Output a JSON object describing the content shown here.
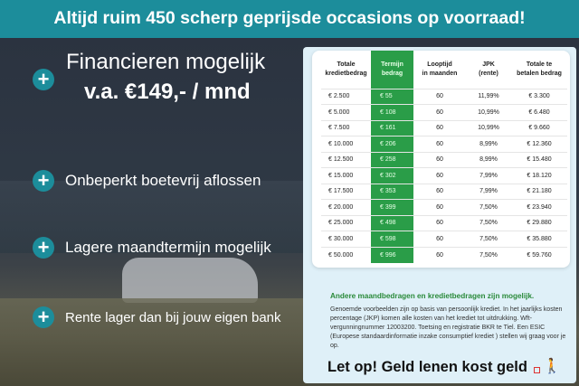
{
  "banner": "Altijd ruim 450 scherp geprijsde occasions op voorraad!",
  "features": {
    "financing_line1": "Financieren mogelijk",
    "financing_line2": "v.a. €149,- / mnd",
    "items": [
      "Onbeperkt boetevrij aflossen",
      "Lagere maandtermijn mogelijk",
      "Rente lager dan bij jouw eigen bank"
    ]
  },
  "table": {
    "headers": [
      [
        "Totale",
        "kredietbedrag"
      ],
      [
        "Termijn",
        "bedrag"
      ],
      [
        "Looptijd",
        "in maanden"
      ],
      [
        "JPK",
        "(rente)"
      ],
      [
        "Totale te",
        "betalen bedrag"
      ]
    ],
    "rows": [
      [
        "€ 2.500",
        "€ 55",
        "60",
        "11,99%",
        "€ 3.300"
      ],
      [
        "€ 5.000",
        "€ 108",
        "60",
        "10,99%",
        "€ 6.480"
      ],
      [
        "€ 7.500",
        "€ 161",
        "60",
        "10,99%",
        "€ 9.660"
      ],
      [
        "€ 10.000",
        "€ 206",
        "60",
        "8,99%",
        "€ 12.360"
      ],
      [
        "€ 12.500",
        "€ 258",
        "60",
        "8,99%",
        "€ 15.480"
      ],
      [
        "€ 15.000",
        "€ 302",
        "60",
        "7,99%",
        "€ 18.120"
      ],
      [
        "€ 17.500",
        "€ 353",
        "60",
        "7,99%",
        "€ 21.180"
      ],
      [
        "€ 20.000",
        "€ 399",
        "60",
        "7,50%",
        "€ 23.940"
      ],
      [
        "€ 25.000",
        "€ 498",
        "60",
        "7,50%",
        "€ 29.880"
      ],
      [
        "€ 30.000",
        "€ 598",
        "60",
        "7,50%",
        "€ 35.880"
      ],
      [
        "€ 50.000",
        "€ 996",
        "60",
        "7,50%",
        "€ 59.760"
      ]
    ]
  },
  "note_heading": "Andere maandbedragen en kredietbedragen zijn mogelijk.",
  "note_text": "Genoemde voorbeelden zijn op basis van persoonlijk krediet. In het jaarlijks kosten percentage (JKP) komen alle kosten van het krediet tot uitdrukking. Wft-vergunningnummer 12003200. Toetsing en registratie BKR te Tiel. Een ESIC (Europese standaardinformatie inzake consumptief krediet ) stellen wij graag voor je op.",
  "warning": "Let op! Geld lenen kost geld",
  "colors": {
    "teal": "#1c8d9b",
    "green": "#2a9d48"
  }
}
